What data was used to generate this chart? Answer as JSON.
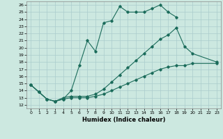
{
  "xlabel": "Humidex (Indice chaleur)",
  "bg_color": "#cce8e0",
  "grid_color": "#aacccc",
  "line_color": "#1a6b5a",
  "xlim": [
    -0.5,
    23.5
  ],
  "ylim": [
    11.5,
    26.5
  ],
  "xticks": [
    0,
    1,
    2,
    3,
    4,
    5,
    6,
    7,
    8,
    9,
    10,
    11,
    12,
    13,
    14,
    15,
    16,
    17,
    18,
    19,
    20,
    21,
    22,
    23
  ],
  "yticks": [
    12,
    13,
    14,
    15,
    16,
    17,
    18,
    19,
    20,
    21,
    22,
    23,
    24,
    25,
    26
  ],
  "line1_x": [
    0,
    1,
    2,
    3,
    4,
    5,
    6,
    7,
    8,
    9,
    10,
    11,
    12,
    13,
    14,
    15,
    16,
    17,
    18
  ],
  "line1_y": [
    14.8,
    13.8,
    12.8,
    12.5,
    12.8,
    14.0,
    17.5,
    21.0,
    19.5,
    23.5,
    23.8,
    25.8,
    25.0,
    25.0,
    25.0,
    25.5,
    26.0,
    25.0,
    24.3
  ],
  "line2_x": [
    0,
    1,
    2,
    3,
    4,
    5,
    6,
    7,
    8,
    9,
    10,
    11,
    12,
    13,
    14,
    15,
    16,
    17,
    18,
    19,
    20,
    23
  ],
  "line2_y": [
    14.8,
    13.8,
    12.8,
    12.5,
    13.0,
    13.2,
    13.2,
    13.2,
    13.5,
    14.2,
    15.2,
    16.2,
    17.2,
    18.2,
    19.2,
    20.2,
    21.2,
    21.8,
    22.8,
    20.2,
    19.2,
    18.0
  ],
  "line3_x": [
    0,
    1,
    2,
    3,
    4,
    5,
    6,
    7,
    8,
    9,
    10,
    11,
    12,
    13,
    14,
    15,
    16,
    17,
    18,
    19,
    20,
    23
  ],
  "line3_y": [
    14.8,
    13.8,
    12.8,
    12.5,
    12.8,
    13.0,
    13.0,
    13.0,
    13.2,
    13.5,
    14.0,
    14.5,
    15.0,
    15.5,
    16.0,
    16.5,
    17.0,
    17.3,
    17.5,
    17.5,
    17.8,
    17.8
  ]
}
